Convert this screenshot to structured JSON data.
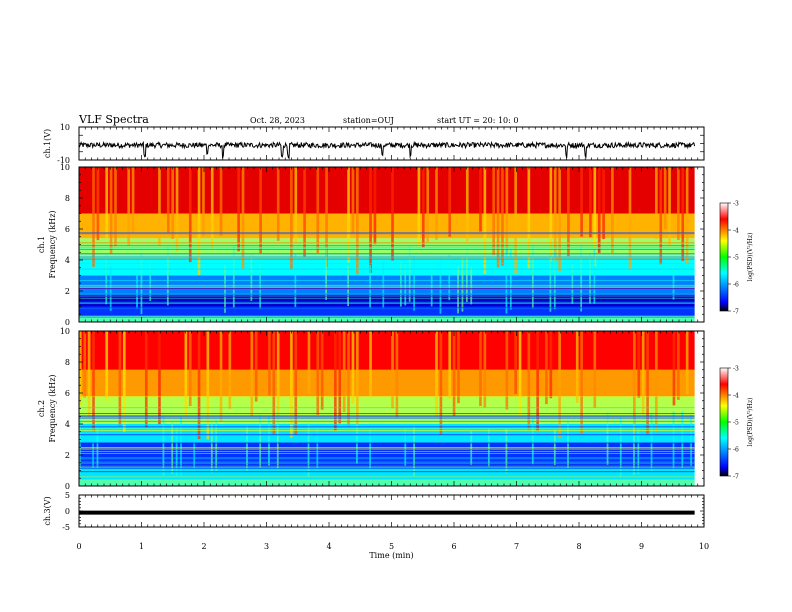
{
  "header": {
    "title": "VLF Spectra",
    "date": "Oct. 28, 2023",
    "station": "station=OUJ",
    "start": "start  UT  =   20: 10: 0"
  },
  "chart_data": [
    {
      "type": "line",
      "panel": "ch1-waveform",
      "ylabel": "ch.1(V)",
      "ylim": [
        -10,
        10
      ],
      "yticks": [
        "10",
        "-10"
      ],
      "xlim": [
        0,
        10
      ],
      "description_series": "broadband waveform trace, baseline near -1 V with short negative spikes",
      "spikes_x": [
        1.05,
        2.05,
        2.3,
        3.25,
        3.35,
        4.85,
        5.3,
        7.8,
        8.1
      ]
    },
    {
      "type": "heatmap",
      "panel": "ch1-spectrogram",
      "ylabel": "ch.1\nFrequency (kHz)",
      "ylim": [
        0,
        10
      ],
      "yticks": [
        "0",
        "2",
        "4",
        "6",
        "8",
        "10"
      ],
      "xlim": [
        0,
        10
      ],
      "colorbar": {
        "label": "log(PSD)(V²/Hz)",
        "ticks": [
          "-3",
          "-4",
          "-5",
          "-6",
          "-7"
        ],
        "range": [
          -7,
          -3
        ]
      },
      "bands_khz": [
        {
          "from": 0,
          "to": 0.4,
          "value": -5.2
        },
        {
          "from": 0.4,
          "to": 1.0,
          "value": -6.3
        },
        {
          "from": 1.0,
          "to": 1.8,
          "value": -6.7
        },
        {
          "from": 1.8,
          "to": 3.0,
          "value": -6.0
        },
        {
          "from": 3.0,
          "to": 4.2,
          "value": -5.5
        },
        {
          "from": 4.2,
          "to": 5.4,
          "value": -4.9
        },
        {
          "from": 5.4,
          "to": 7.0,
          "value": -4.2
        },
        {
          "from": 7.0,
          "to": 10.0,
          "value": -3.4
        }
      ]
    },
    {
      "type": "heatmap",
      "panel": "ch2-spectrogram",
      "ylabel": "ch.2\nFrequency (kHz)",
      "ylim": [
        0,
        10
      ],
      "yticks": [
        "0",
        "2",
        "4",
        "6",
        "8",
        "10"
      ],
      "xlim": [
        0,
        10
      ],
      "colorbar": {
        "label": "log(PSD)(V²/Hz)",
        "ticks": [
          "-3",
          "-4",
          "-5",
          "-6",
          "-7"
        ],
        "range": [
          -7,
          -3
        ]
      },
      "bands_khz": [
        {
          "from": 0,
          "to": 0.4,
          "value": -5.2
        },
        {
          "from": 0.4,
          "to": 1.2,
          "value": -5.6
        },
        {
          "from": 1.2,
          "to": 2.8,
          "value": -6.3
        },
        {
          "from": 2.8,
          "to": 4.0,
          "value": -5.6
        },
        {
          "from": 4.0,
          "to": 5.8,
          "value": -4.8
        },
        {
          "from": 5.8,
          "to": 7.5,
          "value": -4.1
        },
        {
          "from": 7.5,
          "to": 10.0,
          "value": -3.5
        }
      ]
    },
    {
      "type": "line",
      "panel": "ch3-waveform",
      "ylabel": "ch.3(V)",
      "ylim": [
        -5,
        5
      ],
      "yticks": [
        "5",
        "0",
        "-5"
      ],
      "xlim": [
        0,
        10
      ],
      "xlabel": "Time (min)",
      "xticks": [
        "0",
        "1",
        "2",
        "3",
        "4",
        "5",
        "6",
        "7",
        "8",
        "9",
        "10"
      ],
      "constant_value": -0.5
    }
  ]
}
